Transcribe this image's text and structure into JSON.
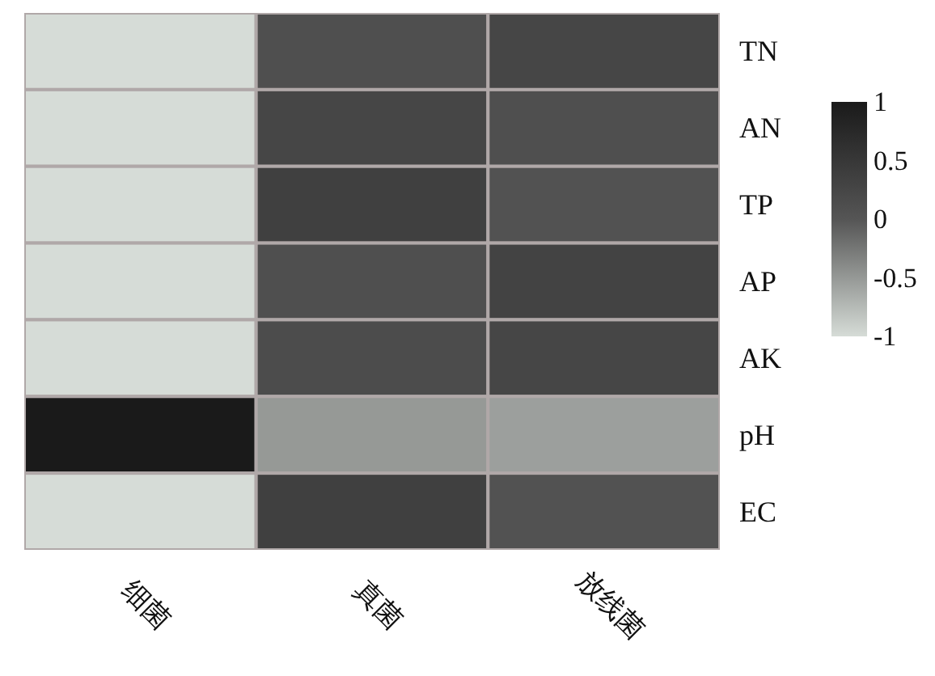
{
  "chart_data": {
    "type": "heatmap",
    "categories": [
      "细菌",
      "真菌",
      "放线菌"
    ],
    "y_categories": [
      "TN",
      "AN",
      "TP",
      "AP",
      "AK",
      "pH",
      "EC"
    ],
    "cells": [
      [
        -1,
        0.1,
        0.25
      ],
      [
        -1,
        0.25,
        0.1
      ],
      [
        -1,
        0.35,
        0.05
      ],
      [
        -1,
        0.1,
        0.3
      ],
      [
        -1,
        0.15,
        0.25
      ],
      [
        1,
        -0.5,
        -0.55
      ],
      [
        -1,
        0.35,
        0.05
      ]
    ],
    "clim": [
      -1,
      1
    ],
    "cticks": [
      1,
      0.5,
      0,
      -0.5,
      -1
    ]
  }
}
